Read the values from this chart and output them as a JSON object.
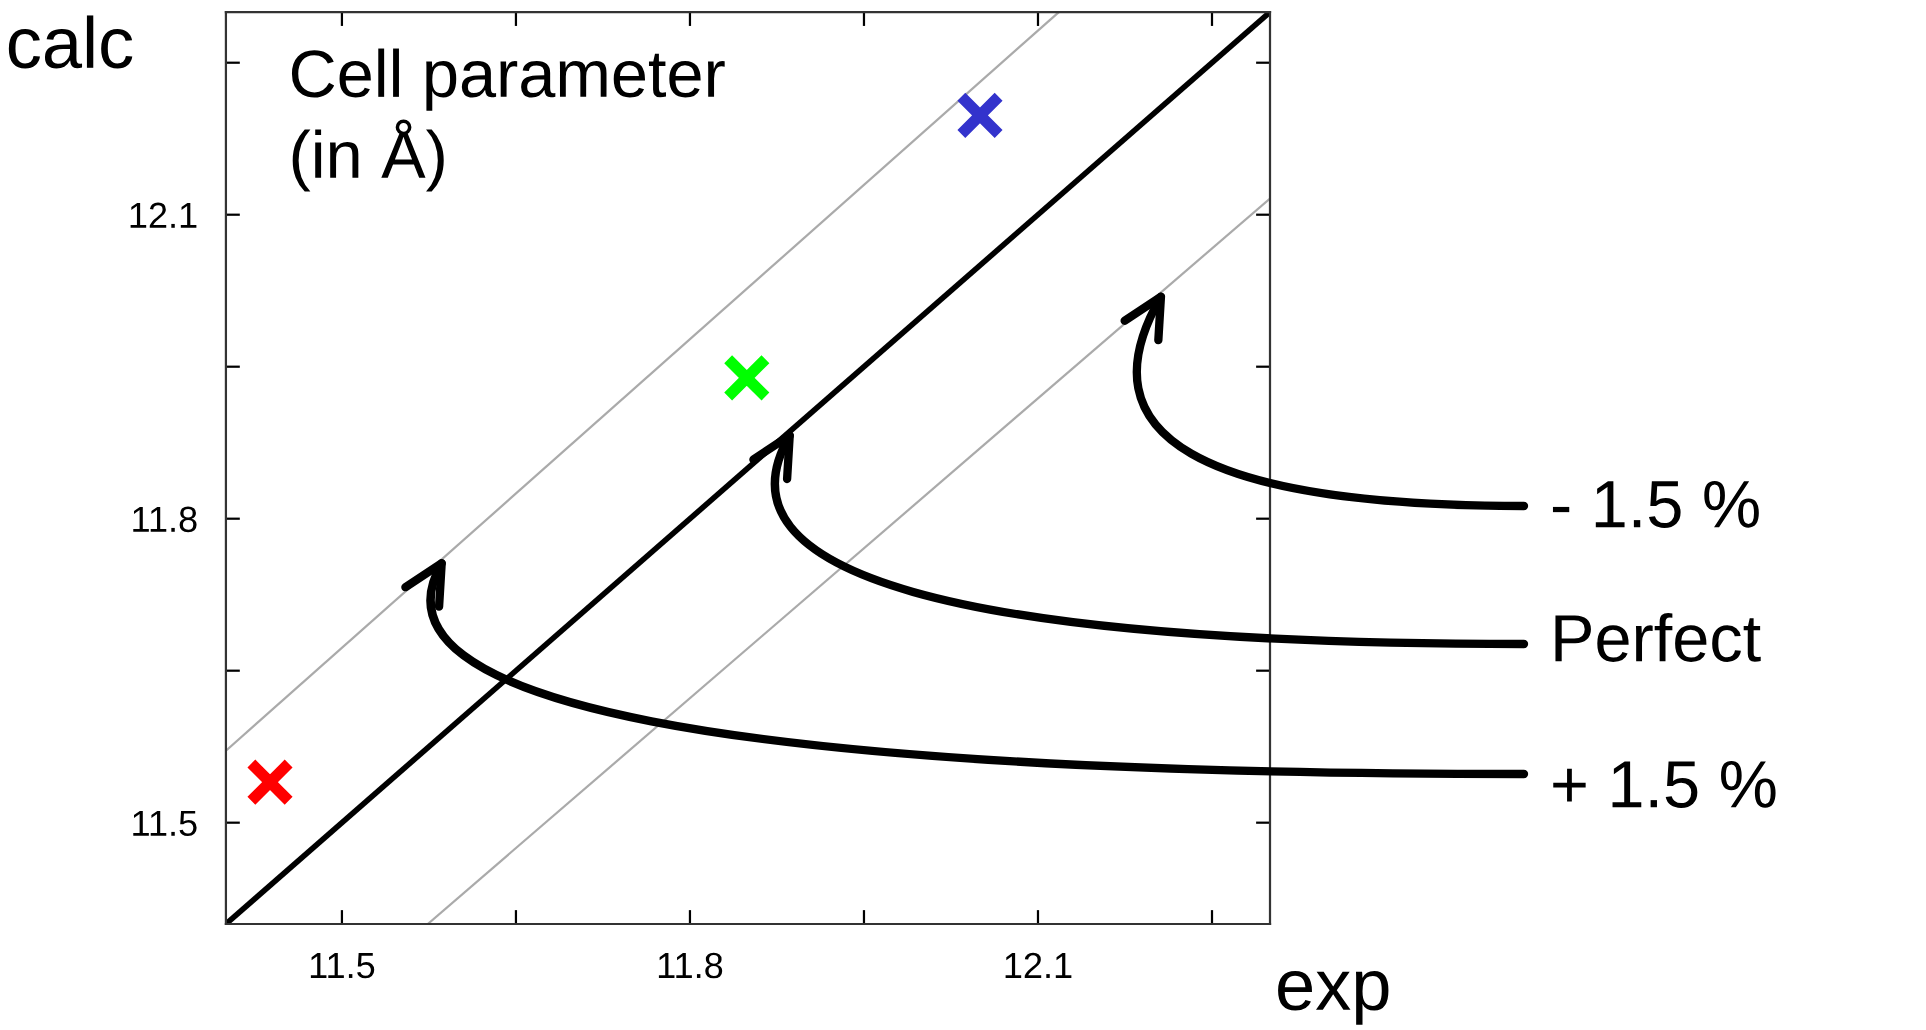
{
  "chart_data": {
    "type": "scatter",
    "title": "Cell parameter\n(in Å)",
    "xlabel": "exp",
    "ylabel": "calc",
    "xlim": [
      11.4,
      12.3
    ],
    "ylim": [
      11.4,
      12.3
    ],
    "xticks": [
      {
        "value": 11.5,
        "label": "11.5"
      },
      {
        "value": 11.65,
        "label": null
      },
      {
        "value": 11.8,
        "label": "11.8"
      },
      {
        "value": 11.95,
        "label": null
      },
      {
        "value": 12.1,
        "label": "12.1"
      },
      {
        "value": 12.25,
        "label": null
      }
    ],
    "yticks": [
      {
        "value": 11.5,
        "label": "11.5"
      },
      {
        "value": 11.65,
        "label": null
      },
      {
        "value": 11.8,
        "label": "11.8"
      },
      {
        "value": 11.95,
        "label": null
      },
      {
        "value": 12.1,
        "label": "12.1"
      },
      {
        "value": 12.25,
        "label": null
      }
    ],
    "grid": false,
    "legend": false,
    "series": [
      {
        "type": "line",
        "color": "#aaaaaa",
        "x": [
          11.4,
          12.118
        ],
        "values": [
          11.571,
          12.3
        ]
      },
      {
        "type": "line",
        "color": "#000000",
        "x": [
          11.4,
          12.3
        ],
        "values": [
          11.4,
          12.3
        ]
      },
      {
        "type": "line",
        "color": "#aaaaaa",
        "x": [
          11.574,
          12.3
        ],
        "values": [
          11.4,
          12.116
        ]
      },
      {
        "marker": "cross",
        "x": [
          11.438,
          11.849,
          12.05
        ],
        "values": [
          11.54,
          11.939,
          12.198
        ],
        "colors": [
          "#ff0000",
          "#00ff00",
          "#3333cc"
        ]
      }
    ],
    "annotations": [
      {
        "text": "- 1.5 %",
        "x": 12.21,
        "y": 12.027
      },
      {
        "text": "Perfect",
        "x": 11.89,
        "y": 11.89
      },
      {
        "text": "+ 1.5 %",
        "x": 11.59,
        "y": 11.764
      }
    ]
  }
}
